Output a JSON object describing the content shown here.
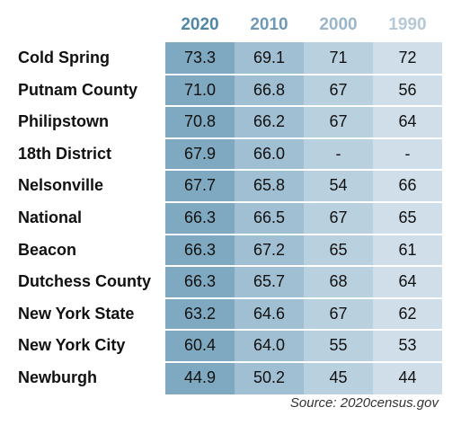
{
  "chart_data": {
    "type": "table",
    "columns": [
      "2020",
      "2010",
      "2000",
      "1990"
    ],
    "rows": [
      {
        "label": "Cold Spring",
        "values": [
          "73.3",
          "69.1",
          "71",
          "72"
        ]
      },
      {
        "label": "Putnam County",
        "values": [
          "71.0",
          "66.8",
          "67",
          "56"
        ]
      },
      {
        "label": "Philipstown",
        "values": [
          "70.8",
          "66.2",
          "67",
          "64"
        ]
      },
      {
        "label": "18th District",
        "values": [
          "67.9",
          "66.0",
          "-",
          "-"
        ]
      },
      {
        "label": "Nelsonville",
        "values": [
          "67.7",
          "65.8",
          "54",
          "66"
        ]
      },
      {
        "label": "National",
        "values": [
          "66.3",
          "66.5",
          "67",
          "65"
        ]
      },
      {
        "label": "Beacon",
        "values": [
          "66.3",
          "67.2",
          "65",
          "61"
        ]
      },
      {
        "label": "Dutchess County",
        "values": [
          "66.3",
          "65.7",
          "68",
          "64"
        ]
      },
      {
        "label": "New York State",
        "values": [
          "63.2",
          "64.6",
          "67",
          "62"
        ]
      },
      {
        "label": "New York City",
        "values": [
          "60.4",
          "64.0",
          "55",
          "53"
        ]
      },
      {
        "label": "Newburgh",
        "values": [
          "44.9",
          "50.2",
          "45",
          "44"
        ]
      }
    ],
    "source": "Source: 2020census.gov"
  },
  "colors": {
    "column_fill": [
      "#7fa9c1",
      "#a0bfd2",
      "#b9d0de",
      "#cfdee8"
    ],
    "header_text": [
      "#4f87a7",
      "#6f99b4",
      "#9ab6c9",
      "#b4c8d6"
    ]
  }
}
